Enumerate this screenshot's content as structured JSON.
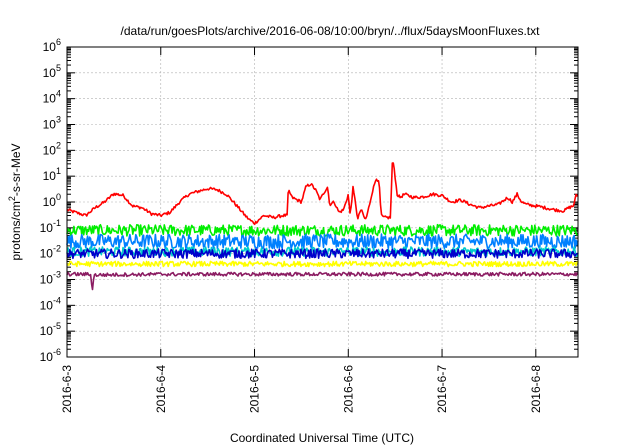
{
  "chart_data": {
    "type": "line",
    "title": "/data/run/goesPlots/archive/2016-06-08/10:00/bryn/../flux/5daysMoonFluxes.txt",
    "xlabel": "Coordinated Universal Time (UTC)",
    "ylabel_parts": {
      "base": "protons/cm",
      "sup": "2",
      "rest": "-s-sr-MeV"
    },
    "x_tick_labels": [
      "2016-6-3",
      "2016-6-4",
      "2016-6-5",
      "2016-6-6",
      "2016-6-7",
      "2016-6-8"
    ],
    "x_tick_days": [
      0,
      1,
      2,
      3,
      4,
      5
    ],
    "xlim_days": [
      0,
      5.45
    ],
    "y_scale": "log",
    "ylim": [
      1e-06,
      1000000.0
    ],
    "y_ticks": [
      {
        "base": "10",
        "exp": "6"
      },
      {
        "base": "10",
        "exp": "5"
      },
      {
        "base": "10",
        "exp": "4"
      },
      {
        "base": "10",
        "exp": "3"
      },
      {
        "base": "10",
        "exp": "2"
      },
      {
        "base": "10",
        "exp": "1"
      },
      {
        "base": "10",
        "exp": "0"
      },
      {
        "base": "10",
        "exp": "-1"
      },
      {
        "base": "10",
        "exp": "-2"
      },
      {
        "base": "10",
        "exp": "-3"
      },
      {
        "base": "10",
        "exp": "-4"
      },
      {
        "base": "10",
        "exp": "-5"
      },
      {
        "base": "10",
        "exp": "-6"
      }
    ],
    "grid": true,
    "series": [
      {
        "color": "#ff0000",
        "noise": 0.06,
        "values": [
          [
            0.0,
            0.5
          ],
          [
            0.2,
            0.3
          ],
          [
            0.3,
            0.6
          ],
          [
            0.4,
            1.0
          ],
          [
            0.5,
            2.1
          ],
          [
            0.6,
            1.8
          ],
          [
            0.7,
            0.7
          ],
          [
            0.8,
            0.6
          ],
          [
            0.9,
            0.35
          ],
          [
            1.0,
            0.3
          ],
          [
            1.1,
            0.4
          ],
          [
            1.2,
            1.0
          ],
          [
            1.3,
            2.0
          ],
          [
            1.4,
            2.6
          ],
          [
            1.5,
            3.3
          ],
          [
            1.6,
            3.0
          ],
          [
            1.7,
            2.0
          ],
          [
            1.8,
            0.8
          ],
          [
            1.9,
            0.3
          ],
          [
            1.95,
            0.2
          ],
          [
            2.0,
            0.15
          ],
          [
            2.1,
            0.3
          ],
          [
            2.2,
            0.25
          ],
          [
            2.3,
            0.3
          ],
          [
            2.35,
            0.3
          ],
          [
            2.36,
            3.0
          ],
          [
            2.4,
            1.5
          ],
          [
            2.5,
            1.0
          ],
          [
            2.55,
            4.0
          ],
          [
            2.6,
            5.0
          ],
          [
            2.65,
            3.0
          ],
          [
            2.7,
            1.2
          ],
          [
            2.73,
            2.0
          ],
          [
            2.78,
            4.0
          ],
          [
            2.8,
            0.8
          ],
          [
            2.85,
            1.0
          ],
          [
            2.9,
            0.4
          ],
          [
            2.95,
            0.5
          ],
          [
            3.0,
            2.0
          ],
          [
            3.02,
            0.3
          ],
          [
            3.05,
            3.5
          ],
          [
            3.08,
            0.8
          ],
          [
            3.1,
            0.2
          ],
          [
            3.13,
            0.5
          ],
          [
            3.15,
            0.4
          ],
          [
            3.18,
            0.2
          ],
          [
            3.2,
            0.3
          ],
          [
            3.25,
            2.0
          ],
          [
            3.28,
            5.0
          ],
          [
            3.3,
            9.0
          ],
          [
            3.33,
            5.0
          ],
          [
            3.35,
            0.3
          ],
          [
            3.38,
            0.25
          ],
          [
            3.45,
            0.25
          ],
          [
            3.47,
            40.0
          ],
          [
            3.49,
            20.0
          ],
          [
            3.52,
            2.0
          ],
          [
            3.55,
            1.5
          ],
          [
            3.6,
            2.0
          ],
          [
            3.7,
            1.5
          ],
          [
            3.8,
            1.6
          ],
          [
            3.9,
            2.0
          ],
          [
            4.0,
            1.8
          ],
          [
            4.1,
            1.0
          ],
          [
            4.2,
            1.2
          ],
          [
            4.3,
            0.8
          ],
          [
            4.4,
            0.6
          ],
          [
            4.5,
            0.7
          ],
          [
            4.6,
            0.8
          ],
          [
            4.7,
            1.5
          ],
          [
            4.75,
            1.0
          ],
          [
            4.8,
            2.0
          ],
          [
            4.85,
            1.0
          ],
          [
            4.9,
            0.8
          ],
          [
            5.0,
            0.7
          ],
          [
            5.1,
            0.6
          ],
          [
            5.2,
            0.5
          ],
          [
            5.3,
            0.45
          ],
          [
            5.35,
            0.6
          ],
          [
            5.4,
            0.7
          ],
          [
            5.43,
            1.8
          ]
        ]
      },
      {
        "color": "#00ee00",
        "noise": 0.22,
        "values": [
          [
            0.0,
            0.08
          ],
          [
            1.0,
            0.08
          ],
          [
            2.0,
            0.08
          ],
          [
            3.0,
            0.08
          ],
          [
            4.0,
            0.08
          ],
          [
            5.0,
            0.08
          ],
          [
            5.45,
            0.08
          ]
        ]
      },
      {
        "color": "#0080ff",
        "noise": 0.28,
        "values": [
          [
            0.0,
            0.03
          ],
          [
            1.0,
            0.03
          ],
          [
            2.0,
            0.03
          ],
          [
            3.0,
            0.03
          ],
          [
            4.0,
            0.03
          ],
          [
            5.0,
            0.03
          ],
          [
            5.45,
            0.03
          ]
        ]
      },
      {
        "color": "#00cccc",
        "noise": 0.18,
        "values": [
          [
            0.0,
            0.012
          ],
          [
            1.0,
            0.012
          ],
          [
            2.0,
            0.012
          ],
          [
            3.0,
            0.012
          ],
          [
            4.0,
            0.012
          ],
          [
            5.0,
            0.012
          ],
          [
            5.45,
            0.012
          ]
        ]
      },
      {
        "color": "#0000cc",
        "noise": 0.18,
        "values": [
          [
            0.0,
            0.01
          ],
          [
            1.0,
            0.01
          ],
          [
            2.0,
            0.01
          ],
          [
            3.0,
            0.01
          ],
          [
            4.0,
            0.01
          ],
          [
            5.0,
            0.01
          ],
          [
            5.45,
            0.01
          ]
        ]
      },
      {
        "color": "#ffff00",
        "noise": 0.1,
        "values": [
          [
            0.0,
            0.004
          ],
          [
            1.0,
            0.004
          ],
          [
            2.0,
            0.004
          ],
          [
            3.0,
            0.004
          ],
          [
            4.0,
            0.004
          ],
          [
            5.0,
            0.004
          ],
          [
            5.45,
            0.004
          ]
        ]
      },
      {
        "color": "#8b1c62",
        "noise": 0.07,
        "values": [
          [
            0.0,
            0.0016
          ],
          [
            0.25,
            0.0016
          ],
          [
            0.27,
            0.0004
          ],
          [
            0.29,
            0.0015
          ],
          [
            1.0,
            0.0016
          ],
          [
            2.0,
            0.0016
          ],
          [
            3.0,
            0.0016
          ],
          [
            4.0,
            0.0016
          ],
          [
            5.0,
            0.0016
          ],
          [
            5.45,
            0.0016
          ]
        ]
      }
    ]
  }
}
